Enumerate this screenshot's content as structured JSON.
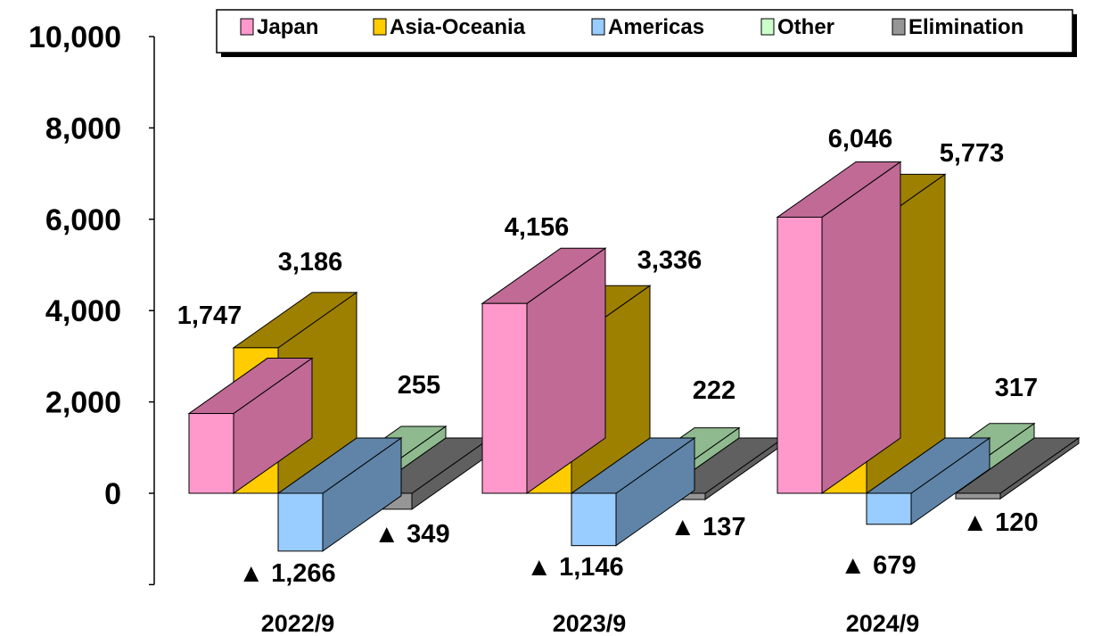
{
  "chart_data": {
    "type": "bar",
    "style": "3d-clustered-column",
    "categories": [
      "2022/9",
      "2023/9",
      "2024/9"
    ],
    "series": [
      {
        "name": "Japan",
        "values": [
          1747,
          4156,
          6046
        ],
        "labels": [
          "1,747",
          "4,156",
          "6,046"
        ],
        "color": "#ff99cc",
        "side": "#c06a95"
      },
      {
        "name": "Asia-Oceania",
        "values": [
          3186,
          3336,
          5773
        ],
        "labels": [
          "3,186",
          "3,336",
          "5,773"
        ],
        "color": "#ffcc00",
        "side": "#9e8000"
      },
      {
        "name": "Americas",
        "values": [
          -1266,
          -1146,
          -679
        ],
        "labels": [
          "▲ 1,266",
          "▲ 1,146",
          "▲ 679"
        ],
        "color": "#99ccff",
        "side": "#5f84a8"
      },
      {
        "name": "Other",
        "values": [
          255,
          222,
          317
        ],
        "labels": [
          "255",
          "222",
          "317"
        ],
        "color": "#ccffcc",
        "side": "#8fba8f"
      },
      {
        "name": "Elimination",
        "values": [
          -349,
          -137,
          -120
        ],
        "labels": [
          "▲ 349",
          "▲ 137",
          "▲ 120"
        ],
        "color": "#969696",
        "side": "#606060"
      }
    ],
    "y_ticks": [
      "0",
      "2,000",
      "4,000",
      "6,000",
      "8,000",
      "10,000"
    ],
    "y_tick_values": [
      0,
      2000,
      4000,
      6000,
      8000,
      10000
    ],
    "ylim": [
      -2000,
      10000
    ],
    "grid": false,
    "legend_position": "top"
  }
}
